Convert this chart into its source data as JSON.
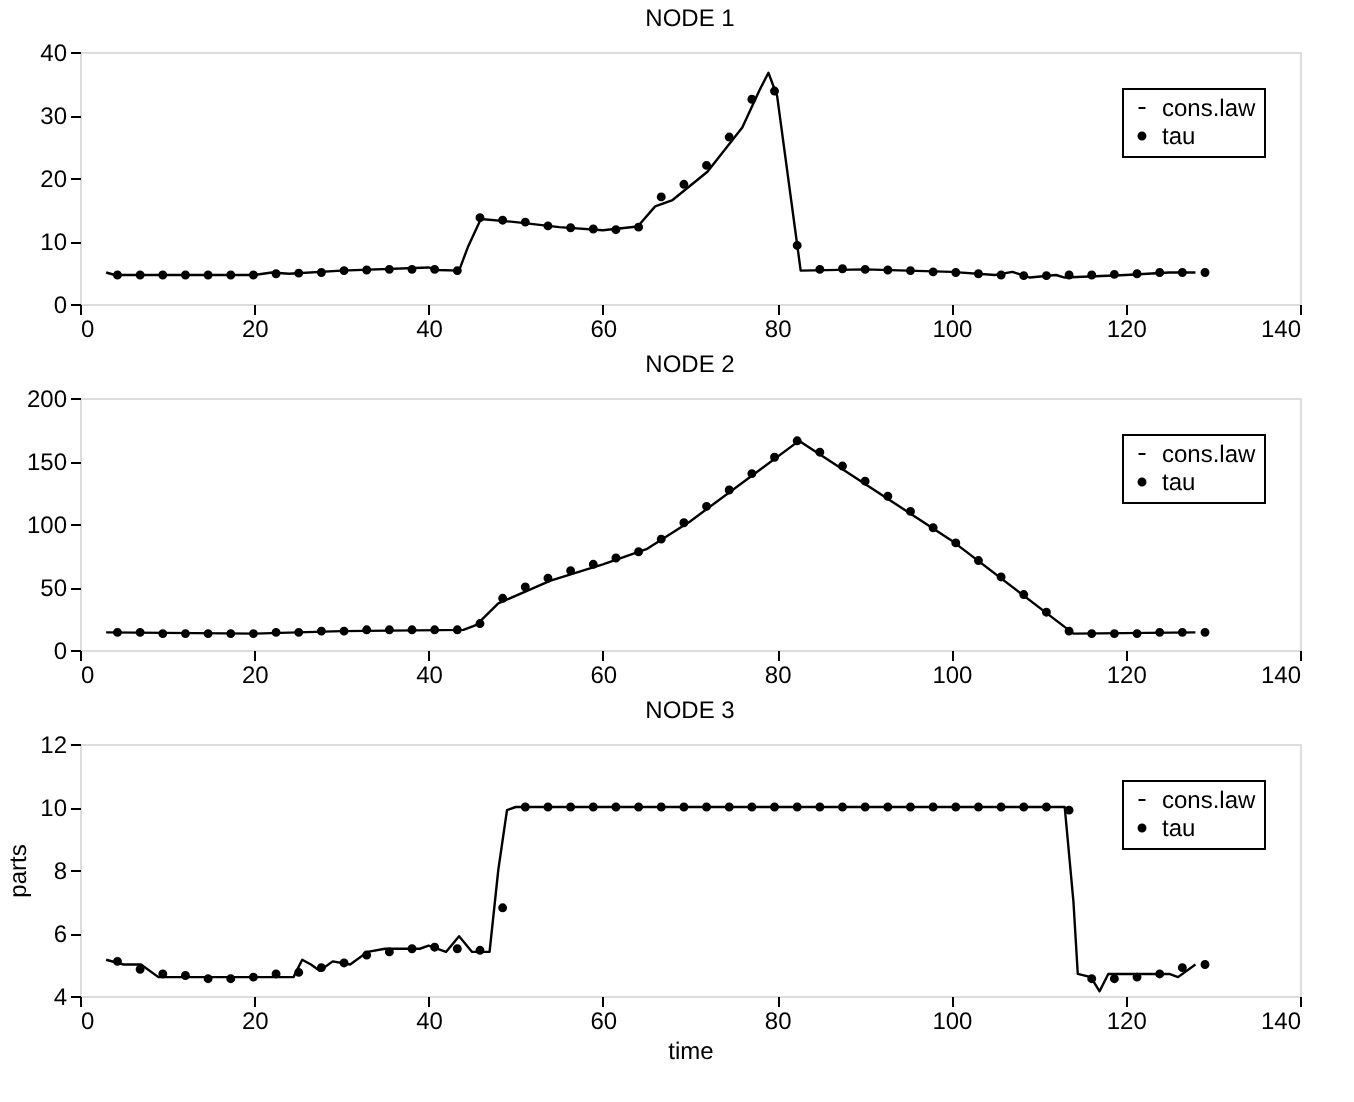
{
  "chart_data": [
    {
      "type": "line",
      "title": "NODE 1",
      "xlim": [
        0,
        140
      ],
      "xticks": [
        0,
        20,
        40,
        60,
        80,
        100,
        120,
        140
      ],
      "ylim": [
        0,
        40
      ],
      "yticks": [
        0,
        10,
        20,
        30,
        40
      ],
      "grid": false,
      "legend": "top right",
      "series": [
        {
          "name": "cons.law",
          "type": "line",
          "color": "#000000",
          "line_style": "solid",
          "x": [
            3,
            4,
            20,
            22,
            24,
            30,
            40,
            41,
            43.5,
            44.5,
            46,
            50,
            55,
            60,
            64,
            66,
            68,
            72,
            76,
            78,
            79,
            80,
            82.7,
            90,
            100,
            105,
            107,
            109,
            112,
            113,
            120,
            125,
            128
          ],
          "values": [
            5.0,
            4.6,
            4.6,
            5.0,
            4.8,
            5.3,
            5.8,
            5.4,
            5.3,
            9,
            13.5,
            13.0,
            12.2,
            11.7,
            12.3,
            15.5,
            16.5,
            21,
            28,
            34,
            36.7,
            33,
            5.3,
            5.5,
            5.1,
            4.6,
            5.1,
            4.2,
            4.6,
            4.2,
            4.6,
            5.0,
            5.0
          ]
        },
        {
          "name": "tau",
          "type": "scatter",
          "color": "#000000",
          "marker": "circle",
          "x": [
            4.3,
            6.9,
            9.5,
            12.1,
            14.7,
            17.3,
            19.9,
            22.5,
            25.1,
            27.7,
            30.3,
            32.9,
            35.5,
            38.1,
            40.7,
            43.3,
            45.9,
            48.5,
            51.1,
            53.7,
            56.3,
            58.9,
            61.5,
            64.1,
            66.7,
            69.3,
            71.9,
            74.5,
            77.1,
            79.7,
            82.3,
            84.9,
            87.5,
            90.1,
            92.7,
            95.3,
            97.9,
            100.5,
            103.1,
            105.7,
            108.3,
            110.9,
            113.5,
            116.1,
            118.7,
            121.3,
            123.9,
            126.5,
            129.1
          ],
          "values": [
            4.6,
            4.6,
            4.6,
            4.6,
            4.6,
            4.6,
            4.6,
            4.8,
            4.9,
            5.0,
            5.3,
            5.4,
            5.5,
            5.5,
            5.5,
            5.3,
            13.7,
            13.3,
            13.0,
            12.4,
            12.1,
            11.9,
            11.8,
            12.2,
            17,
            19,
            22,
            26.5,
            32.5,
            33.8,
            9.3,
            5.5,
            5.6,
            5.5,
            5.4,
            5.3,
            5.1,
            5.0,
            4.8,
            4.6,
            4.5,
            4.5,
            4.6,
            4.6,
            4.7,
            4.8,
            5.0,
            5.0,
            5.0
          ]
        }
      ]
    },
    {
      "type": "line",
      "title": "NODE 2",
      "xlim": [
        0,
        140
      ],
      "xticks": [
        0,
        20,
        40,
        60,
        80,
        100,
        120,
        140
      ],
      "ylim": [
        0,
        200
      ],
      "yticks": [
        0,
        50,
        100,
        150,
        200
      ],
      "grid": false,
      "legend": "top right",
      "series": [
        {
          "name": "cons.law",
          "type": "line",
          "color": "#000000",
          "line_style": "solid",
          "x": [
            3,
            20,
            30,
            44,
            45.5,
            48,
            54,
            60,
            65,
            70,
            82.5,
            100,
            114,
            128
          ],
          "values": [
            14,
            13,
            15,
            16,
            20,
            37,
            55,
            68,
            80,
            102,
            166,
            87,
            13,
            14
          ]
        },
        {
          "name": "tau",
          "type": "scatter",
          "color": "#000000",
          "marker": "circle",
          "x": [
            4.3,
            6.9,
            9.5,
            12.1,
            14.7,
            17.3,
            19.9,
            22.5,
            25.1,
            27.7,
            30.3,
            32.9,
            35.5,
            38.1,
            40.7,
            43.3,
            45.9,
            48.5,
            51.1,
            53.7,
            56.3,
            58.9,
            61.5,
            64.1,
            66.7,
            69.3,
            71.9,
            74.5,
            77.1,
            79.7,
            82.3,
            84.9,
            87.5,
            90.1,
            92.7,
            95.3,
            97.9,
            100.5,
            103.1,
            105.7,
            108.3,
            110.9,
            113.5,
            116.1,
            118.7,
            121.3,
            123.9,
            126.5,
            129.1
          ],
          "values": [
            14,
            14,
            13,
            13,
            13,
            13,
            13,
            14,
            14,
            15,
            15,
            16,
            16,
            16,
            16,
            16,
            21,
            41,
            50,
            57,
            63,
            68,
            73,
            78,
            88,
            101,
            114,
            127,
            140,
            153,
            166,
            157,
            146,
            134,
            122,
            110,
            97,
            85,
            71,
            58,
            44,
            30,
            15,
            13,
            13,
            13,
            14,
            14,
            14
          ]
        }
      ]
    },
    {
      "type": "line",
      "title": "NODE 3",
      "xlabel": "time",
      "ylabel": "parts",
      "xlim": [
        0,
        140
      ],
      "xticks": [
        0,
        20,
        40,
        60,
        80,
        100,
        120,
        140
      ],
      "ylim": [
        4,
        12
      ],
      "yticks": [
        4,
        6,
        8,
        10,
        12
      ],
      "grid": false,
      "legend": "top right",
      "series": [
        {
          "name": "cons.law",
          "type": "line",
          "color": "#000000",
          "line_style": "solid",
          "x": [
            3,
            5,
            7,
            9,
            23,
            24.5,
            25.5,
            26.5,
            27.5,
            29,
            31,
            33,
            35,
            39,
            40,
            42,
            43.5,
            45,
            47,
            48,
            49,
            50,
            113,
            114,
            114.5,
            116,
            117,
            118,
            125,
            126,
            128
          ],
          "values": [
            5.15,
            5.0,
            5.0,
            4.6,
            4.6,
            4.6,
            5.15,
            5.0,
            4.8,
            5.1,
            5.0,
            5.4,
            5.5,
            5.5,
            5.6,
            5.4,
            5.9,
            5.4,
            5.4,
            8,
            9.9,
            10,
            10,
            7,
            4.7,
            4.6,
            4.15,
            4.7,
            4.7,
            4.6,
            5.0
          ]
        },
        {
          "name": "tau",
          "type": "scatter",
          "color": "#000000",
          "marker": "circle",
          "x": [
            4.3,
            6.9,
            9.5,
            12.1,
            14.7,
            17.3,
            19.9,
            22.5,
            25.1,
            27.7,
            30.3,
            32.9,
            35.5,
            38.1,
            40.7,
            43.3,
            45.9,
            48.5,
            51.1,
            53.7,
            56.3,
            58.9,
            61.5,
            64.1,
            66.7,
            69.3,
            71.9,
            74.5,
            77.1,
            79.7,
            82.3,
            84.9,
            87.5,
            90.1,
            92.7,
            95.3,
            97.9,
            100.5,
            103.1,
            105.7,
            108.3,
            110.9,
            113.5,
            116.1,
            118.7,
            121.3,
            123.9,
            126.5,
            129.1
          ],
          "values": [
            5.1,
            4.85,
            4.7,
            4.65,
            4.55,
            4.55,
            4.6,
            4.7,
            4.75,
            4.9,
            5.05,
            5.3,
            5.4,
            5.5,
            5.55,
            5.5,
            5.45,
            6.8,
            10,
            10,
            10,
            10,
            10,
            10,
            10,
            10,
            10,
            10,
            10,
            10,
            10,
            10,
            10,
            10,
            10,
            10,
            10,
            10,
            10,
            10,
            10,
            10,
            9.9,
            4.55,
            4.55,
            4.6,
            4.7,
            4.9,
            5.0
          ]
        }
      ]
    }
  ]
}
